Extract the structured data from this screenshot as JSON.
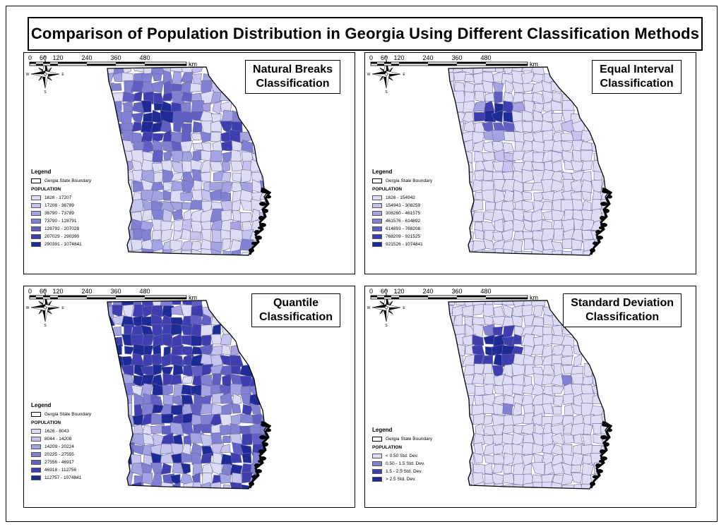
{
  "title": "Comparison of Population Distribution in Georgia Using Different Classification Methods",
  "compass": {
    "n": "N",
    "s": "S",
    "e": "E",
    "w": "W"
  },
  "legend_title": "Legend",
  "boundary_label": "Gergia State Boundary",
  "population_label": "POPULATION",
  "scale": {
    "ticks": [
      "0",
      "60",
      "120",
      "240",
      "360",
      "480"
    ],
    "unit": "km"
  },
  "colors": {
    "c1": "#dcdcf5",
    "c2": "#c4c4ee",
    "c3": "#a4a4e2",
    "c4": "#8181d3",
    "c5": "#5f5fc4",
    "c6": "#3e3eb1",
    "c7": "#1e2a96",
    "border": "#6b6b9e"
  },
  "panels": [
    {
      "id": "natural-breaks",
      "title_line1": "Natural Breaks",
      "title_line2": "Classification",
      "classes": [
        "1626 - 17207",
        "17208 - 36789",
        "36790 - 73789",
        "73790 - 128791",
        "128792 - 207028",
        "207029 - 290390",
        "290391 - 1074841"
      ]
    },
    {
      "id": "equal-interval",
      "title_line1": "Equal Interval",
      "title_line2": "Classification",
      "classes": [
        "1626 - 154942",
        "154943 - 308259",
        "308260 - 461575",
        "461576 - 614892",
        "614893 - 768208",
        "768209 - 921525",
        "921526 - 1074841"
      ]
    },
    {
      "id": "quantile",
      "title_line1": "Quantile",
      "title_line2": "Classification",
      "classes": [
        "1626 - 8043",
        "8044 - 14208",
        "14209 - 20224",
        "20225 - 27555",
        "27556 - 46917",
        "46918 - 112756",
        "112757 - 1074841"
      ]
    },
    {
      "id": "standard-deviation",
      "title_line1": "Standard Deviation",
      "title_line2": "Classification",
      "classes": [
        "< 0.50 Std. Dev.",
        "0.50 - 1.5 Std. Dev.",
        "1.5 - 2.5 Std. Dev.",
        "> 2.5 Std. Dev."
      ]
    }
  ]
}
